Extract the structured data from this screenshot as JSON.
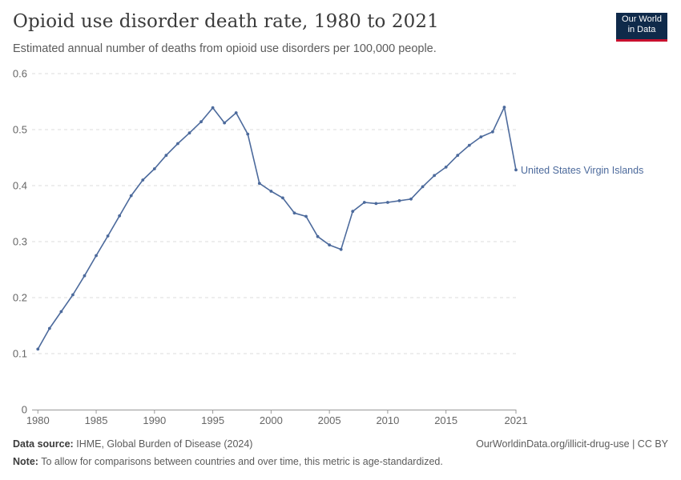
{
  "header": {
    "title": "Opioid use disorder death rate, 1980 to 2021",
    "subtitle": "Estimated annual number of deaths from opioid use disorders per 100,000 people."
  },
  "logo": {
    "line1": "Our World",
    "line2": "in Data"
  },
  "footer": {
    "source_label": "Data source:",
    "source_text": "IHME, Global Burden of Disease (2024)",
    "link": "OurWorldinData.org/illicit-drug-use | CC BY",
    "note_label": "Note:",
    "note_text": "To allow for comparisons between countries and over time, this metric is age-standardized."
  },
  "colors": {
    "series": "#4c6a9c",
    "grid": "#dddddd",
    "axis": "#666666"
  },
  "chart_data": {
    "type": "line",
    "title": "Opioid use disorder death rate, 1980 to 2021",
    "xlim": [
      1979.5,
      2021
    ],
    "ylim": [
      0,
      0.6
    ],
    "yticks": [
      0,
      0.1,
      0.2,
      0.3,
      0.4,
      0.5,
      0.6
    ],
    "ytick_labels": [
      "0",
      "0.1",
      "0.2",
      "0.3",
      "0.4",
      "0.5",
      "0.6"
    ],
    "xticks": [
      1980,
      1985,
      1990,
      1995,
      2000,
      2005,
      2010,
      2015,
      2021
    ],
    "xtick_labels": [
      "1980",
      "1985",
      "1990",
      "1995",
      "2000",
      "2005",
      "2010",
      "2015",
      "2021"
    ],
    "grid": true,
    "series": [
      {
        "name": "United States Virgin Islands",
        "x": [
          1980,
          1981,
          1982,
          1983,
          1984,
          1985,
          1986,
          1987,
          1988,
          1989,
          1990,
          1991,
          1992,
          1993,
          1994,
          1995,
          1996,
          1997,
          1998,
          1999,
          2000,
          2001,
          2002,
          2003,
          2004,
          2005,
          2006,
          2007,
          2008,
          2009,
          2010,
          2011,
          2012,
          2013,
          2014,
          2015,
          2016,
          2017,
          2018,
          2019,
          2020,
          2021
        ],
        "values": [
          0.108,
          0.145,
          0.175,
          0.205,
          0.239,
          0.275,
          0.31,
          0.346,
          0.382,
          0.41,
          0.43,
          0.454,
          0.475,
          0.494,
          0.514,
          0.539,
          0.512,
          0.53,
          0.492,
          0.404,
          0.39,
          0.378,
          0.351,
          0.345,
          0.309,
          0.294,
          0.286,
          0.354,
          0.37,
          0.368,
          0.37,
          0.373,
          0.376,
          0.398,
          0.418,
          0.433,
          0.454,
          0.472,
          0.487,
          0.496,
          0.54,
          0.428
        ]
      }
    ]
  }
}
